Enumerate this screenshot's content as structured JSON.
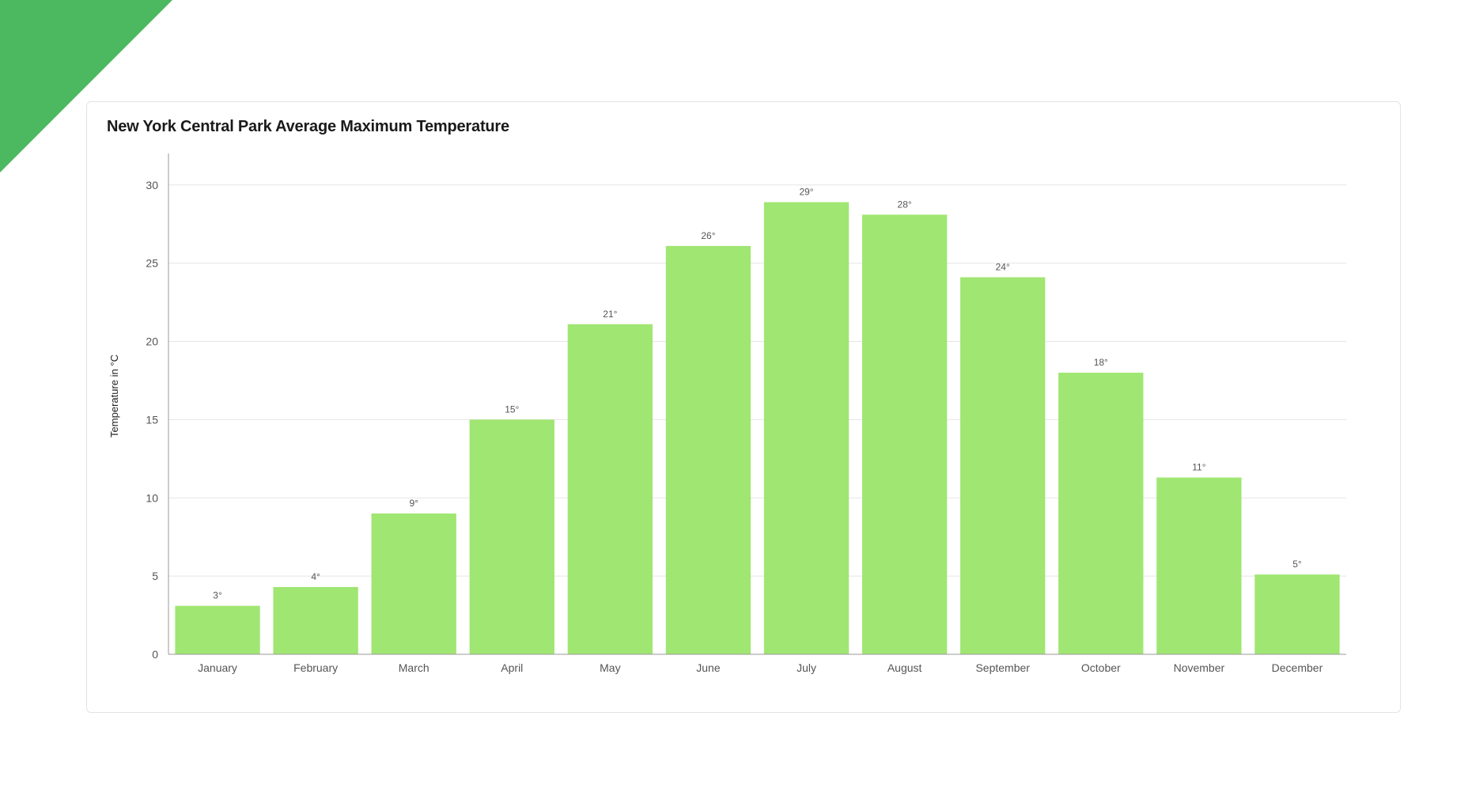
{
  "colors": {
    "corner": "#4cb860",
    "bar": "#a0e672",
    "grid": "#e5e5e5",
    "axis": "#999999"
  },
  "chart_data": {
    "type": "bar",
    "title": "New York Central Park Average Maximum Temperature",
    "xlabel": "",
    "ylabel": "Temperature in °C",
    "ylim": [
      0,
      31
    ],
    "yticks": [
      0,
      5,
      10,
      15,
      20,
      25,
      30
    ],
    "grid": true,
    "categories": [
      "January",
      "February",
      "March",
      "April",
      "May",
      "June",
      "July",
      "August",
      "September",
      "October",
      "November",
      "December"
    ],
    "values": [
      3.1,
      4.3,
      9.0,
      15.0,
      21.1,
      26.1,
      28.9,
      28.1,
      24.1,
      18.0,
      11.3,
      5.1
    ],
    "data_labels": [
      "3°",
      "4°",
      "9°",
      "15°",
      "21°",
      "26°",
      "29°",
      "28°",
      "24°",
      "18°",
      "11°",
      "5°"
    ]
  }
}
